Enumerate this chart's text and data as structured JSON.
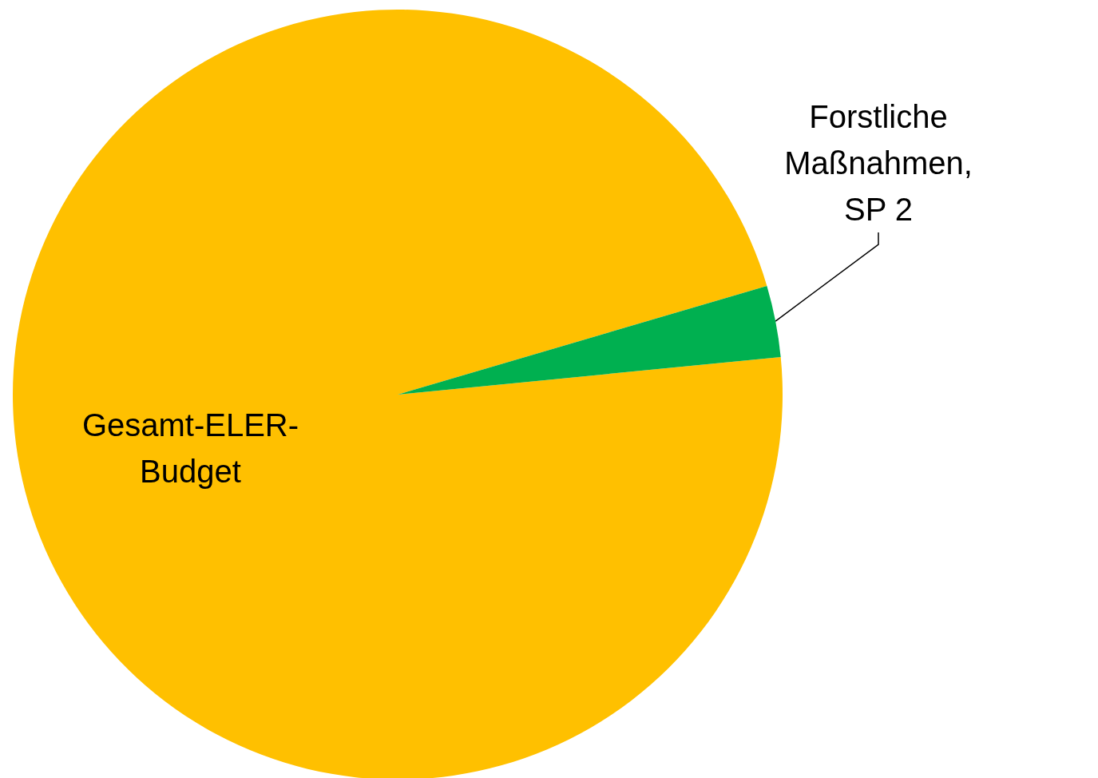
{
  "chart_data": {
    "type": "pie",
    "categories": [
      "Gesamt-ELER-\nBudget",
      "Forstliche\nMaßnahmen,\nSP 2"
    ],
    "values": [
      97,
      3
    ],
    "colors": [
      "#ffc000",
      "#00b050"
    ],
    "legend": false
  }
}
